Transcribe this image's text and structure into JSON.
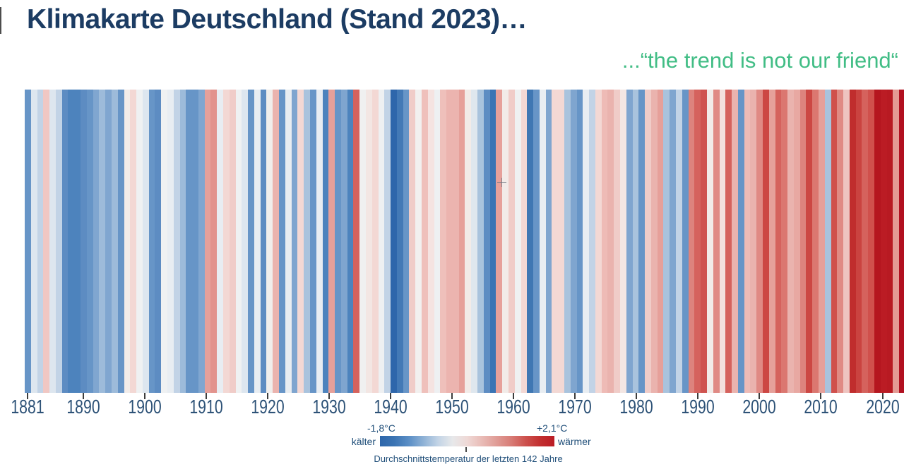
{
  "header": {
    "title": "Klimakarte Deutschland (Stand 2023)…",
    "subtitle": "...“the trend is not our friend“"
  },
  "chart_data": {
    "type": "heatmap",
    "subtype": "warming-stripes",
    "title": "Klimakarte Deutschland (Stand 2023)…",
    "start_year": 1881,
    "end_year": 2023,
    "x_tick_labels": [
      "1881",
      "1890",
      "1900",
      "1910",
      "1920",
      "1930",
      "1940",
      "1950",
      "1960",
      "1970",
      "1980",
      "1990",
      "2000",
      "2010",
      "2020"
    ],
    "x_tick_years": [
      1881,
      1890,
      1900,
      1910,
      1920,
      1930,
      1940,
      1950,
      1960,
      1970,
      1980,
      1990,
      2000,
      2010,
      2020
    ],
    "stripe_colors": [
      "#6795c7",
      "#dde6ef",
      "#c2d3e6",
      "#f0c7c3",
      "#dde6ef",
      "#c2d3e6",
      "#5d8cc2",
      "#4d83bd",
      "#4d83bd",
      "#5d8cc2",
      "#6795c7",
      "#80a6d0",
      "#9dbbda",
      "#80a6d0",
      "#9dbbda",
      "#6795c7",
      "#f2ece9",
      "#f3d8d4",
      "#eff1f2",
      "#dde6ef",
      "#6795c7",
      "#5d8cc2",
      "#eff1f2",
      "#e8edf2",
      "#c2d3e6",
      "#9dbbda",
      "#6795c7",
      "#6795c7",
      "#80a6d0",
      "#e6a09a",
      "#e2938d",
      "#e8edf2",
      "#f3d8d4",
      "#f0ccc8",
      "#eff1f2",
      "#dde6ef",
      "#6795c7",
      "#e8edf2",
      "#5d8cc2",
      "#f0eeec",
      "#eab3ae",
      "#6795c7",
      "#e9edf1",
      "#7fa5cf",
      "#f3d8d4",
      "#a9c3dd",
      "#6795c7",
      "#e8edf2",
      "#4d83bd",
      "#e6a09a",
      "#6795c7",
      "#7fa5cf",
      "#4d83bd",
      "#d5625d",
      "#f0f0f0",
      "#f3e6e3",
      "#f3d8d4",
      "#eef0f2",
      "#c2d3e6",
      "#2e66ab",
      "#4379b6",
      "#6795c7",
      "#f0ccc8",
      "#f2f0ef",
      "#efc0bb",
      "#f5e3e1",
      "#eef0f2",
      "#efc0bb",
      "#ecb4af",
      "#ecb4af",
      "#e6a09a",
      "#f2ebe8",
      "#dfe7ee",
      "#a9c3dd",
      "#5d8cc2",
      "#3a74b4",
      "#e6a09a",
      "#f2ebe8",
      "#f0ccc8",
      "#eff1f2",
      "#f3d8d4",
      "#3f77b3",
      "#6795c7",
      "#e8edf2",
      "#7fa5cf",
      "#f3d8d4",
      "#f3d8d4",
      "#a9c3dd",
      "#7fa5cf",
      "#6795c7",
      "#e8edf2",
      "#c2d3e6",
      "#f3d8d4",
      "#eebbb6",
      "#eab3ae",
      "#f0ccc8",
      "#f3e6e3",
      "#7fa5cf",
      "#a9c3dd",
      "#6795c7",
      "#f0ccc8",
      "#eab3ae",
      "#e6a09a",
      "#a9c3dd",
      "#7fa5cf",
      "#c2d3e6",
      "#6795c7",
      "#dd837d",
      "#d5625d",
      "#cf534f",
      "#f2ebe8",
      "#e08a84",
      "#f3e0dd",
      "#d5625d",
      "#eab3ae",
      "#6795c7",
      "#eebbb6",
      "#eab3ae",
      "#e08a84",
      "#cc4743",
      "#e6a09a",
      "#d5625d",
      "#db7770",
      "#eab3ae",
      "#e8a8a2",
      "#dd837d",
      "#cc4743",
      "#db7770",
      "#e6a09a",
      "#a9c3dd",
      "#d0504c",
      "#e08a84",
      "#eec4c0",
      "#c02d2d",
      "#ca4340",
      "#d5625d",
      "#d0504c",
      "#b5161f",
      "#bb1c24",
      "#b81a22",
      "#e49a94",
      "#b11020",
      "#ad0d1e"
    ],
    "legend": {
      "min_label": "-1,8°C",
      "max_label": "+2,1°C",
      "left_label": "kälter",
      "right_label": "wärmer",
      "caption": "Durchschnittstemperatur der letzten 142 Jahre",
      "gradient": [
        "#2d66aa",
        "#3b74b3",
        "#5b8fc6",
        "#8fb2d6",
        "#c3d4e6",
        "#e7e8ea",
        "#efd9d6",
        "#e9bcb7",
        "#e09d97",
        "#d87d77",
        "#cd524e",
        "#c23030",
        "#bb1c24"
      ]
    },
    "colors": {
      "title": "#1c3c63",
      "subtitle": "#41bd85",
      "axis_label": "#2d5277",
      "legend_text": "#1f4e79"
    }
  }
}
